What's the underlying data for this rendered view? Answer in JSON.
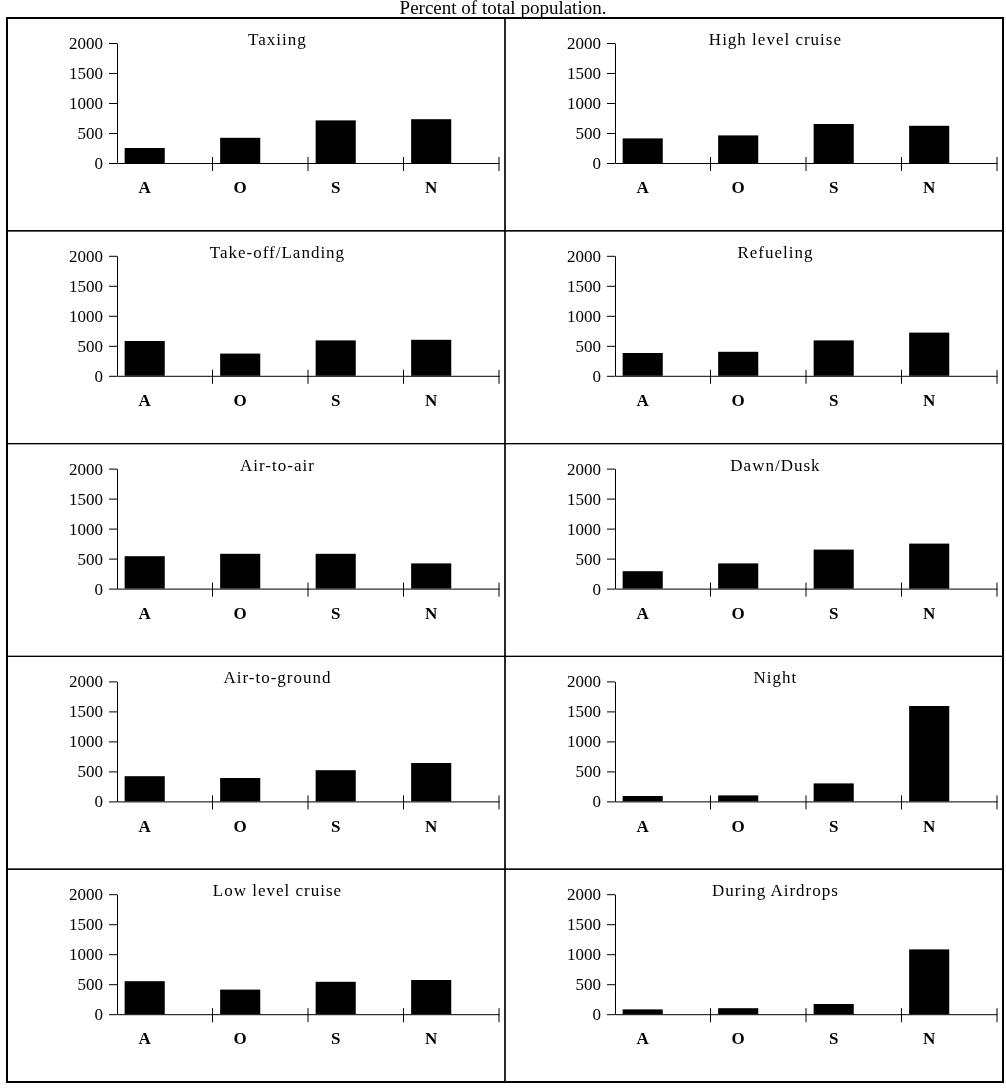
{
  "chart_data": [
    {
      "type": "bar",
      "title": "Taxiing",
      "annotations": [
        "Percent of total population."
      ],
      "categories": [
        "A",
        "O",
        "S",
        "N"
      ],
      "values": [
        250,
        420,
        710,
        730
      ],
      "color": "#000000",
      "ylim": [
        0,
        2000
      ],
      "yticks": [
        0,
        500,
        1000,
        1500,
        2000
      ]
    },
    {
      "type": "bar",
      "title": "High level cruise",
      "categories": [
        "A",
        "O",
        "S",
        "N"
      ],
      "values": [
        410,
        460,
        650,
        620
      ],
      "color": "#000000",
      "ylim": [
        0,
        2000
      ],
      "yticks": [
        0,
        500,
        1000,
        1500,
        2000
      ]
    },
    {
      "type": "bar",
      "title": "Take-off/Landing",
      "categories": [
        "A",
        "O",
        "S",
        "N"
      ],
      "values": [
        580,
        370,
        590,
        600
      ],
      "color": "#000000",
      "ylim": [
        0,
        2000
      ],
      "yticks": [
        0,
        500,
        1000,
        1500,
        2000
      ]
    },
    {
      "type": "bar",
      "title": "Refueling",
      "categories": [
        "A",
        "O",
        "S",
        "N"
      ],
      "values": [
        380,
        400,
        590,
        720
      ],
      "color": "#000000",
      "ylim": [
        0,
        2000
      ],
      "yticks": [
        0,
        500,
        1000,
        1500,
        2000
      ]
    },
    {
      "type": "bar",
      "title": "Air-to-air",
      "categories": [
        "A",
        "O",
        "S",
        "N"
      ],
      "values": [
        540,
        580,
        580,
        420
      ],
      "color": "#000000",
      "ylim": [
        0,
        2000
      ],
      "yticks": [
        0,
        500,
        1000,
        1500,
        2000
      ]
    },
    {
      "type": "bar",
      "title": "Dawn/Dusk",
      "categories": [
        "A",
        "O",
        "S",
        "N"
      ],
      "values": [
        290,
        420,
        650,
        750
      ],
      "color": "#000000",
      "ylim": [
        0,
        2000
      ],
      "yticks": [
        0,
        500,
        1000,
        1500,
        2000
      ]
    },
    {
      "type": "bar",
      "title": "Air-to-ground",
      "categories": [
        "A",
        "O",
        "S",
        "N"
      ],
      "values": [
        420,
        390,
        520,
        640
      ],
      "color": "#000000",
      "ylim": [
        0,
        2000
      ],
      "yticks": [
        0,
        500,
        1000,
        1500,
        2000
      ]
    },
    {
      "type": "bar",
      "title": "Night",
      "categories": [
        "A",
        "O",
        "S",
        "N"
      ],
      "values": [
        90,
        100,
        300,
        1590
      ],
      "color": "#000000",
      "ylim": [
        0,
        2000
      ],
      "yticks": [
        0,
        500,
        1000,
        1500,
        2000
      ]
    },
    {
      "type": "bar",
      "title": "Low level cruise",
      "categories": [
        "A",
        "O",
        "S",
        "N"
      ],
      "values": [
        550,
        410,
        540,
        570
      ],
      "color": "#000000",
      "ylim": [
        0,
        2000
      ],
      "yticks": [
        0,
        500,
        1000,
        1500,
        2000
      ]
    },
    {
      "type": "bar",
      "title": "During Airdrops",
      "categories": [
        "A",
        "O",
        "S",
        "N"
      ],
      "values": [
        80,
        100,
        170,
        1080
      ],
      "color": "#000000",
      "ylim": [
        0,
        2000
      ],
      "yticks": [
        0,
        500,
        1000,
        1500,
        2000
      ]
    }
  ]
}
